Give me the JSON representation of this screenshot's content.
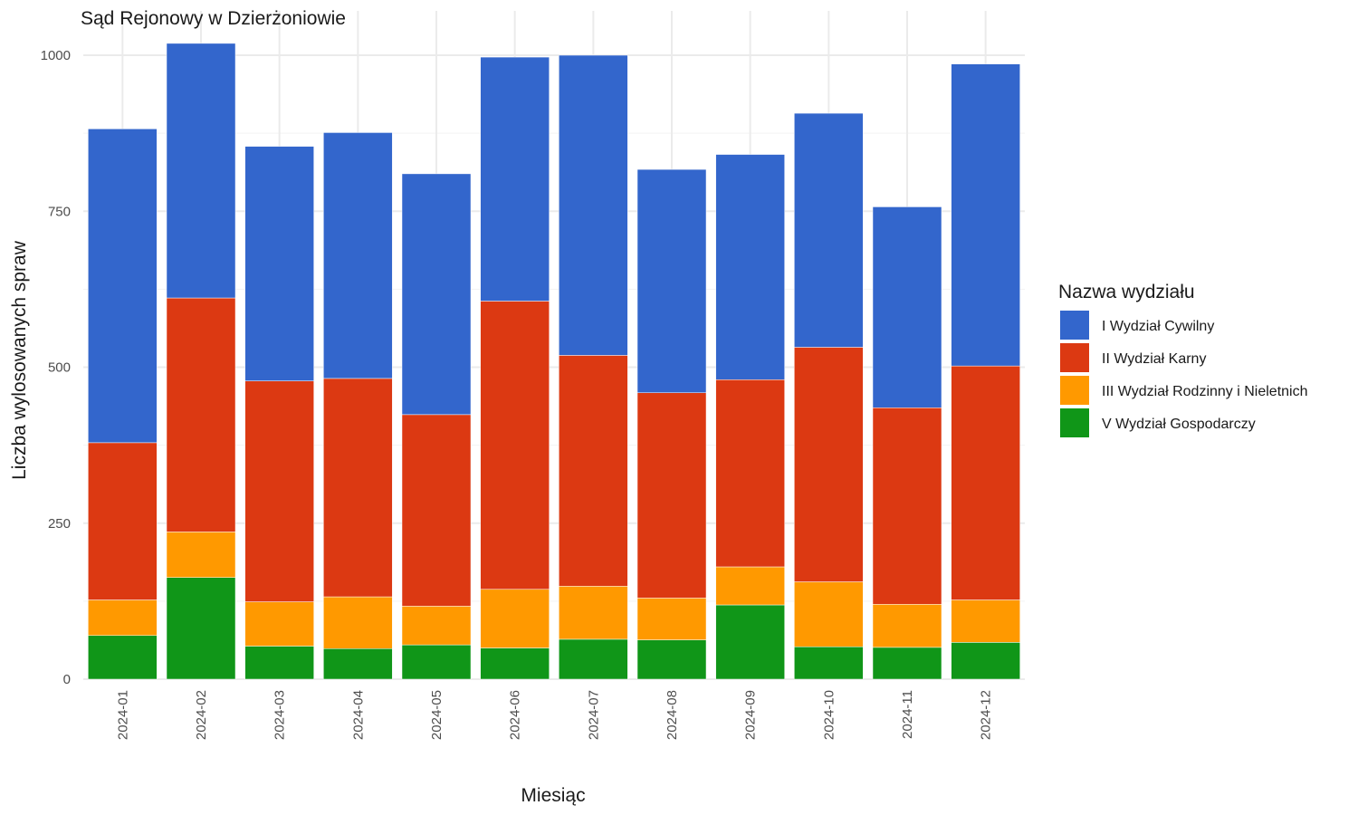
{
  "chart_data": {
    "type": "bar",
    "stacked": true,
    "title": "Sąd Rejonowy w Dzierżoniowie",
    "xlabel": "Miesiąc",
    "ylabel": "Liczba wylosowanych spraw",
    "ylim": [
      0,
      1050
    ],
    "yticks": [
      0,
      250,
      500,
      750,
      1000
    ],
    "grid": true,
    "legend": {
      "title": "Nazwa wydziału",
      "position": "right"
    },
    "categories": [
      "2024-01",
      "2024-02",
      "2024-03",
      "2024-04",
      "2024-05",
      "2024-06",
      "2024-07",
      "2024-08",
      "2024-09",
      "2024-10",
      "2024-11",
      "2024-12"
    ],
    "series": [
      {
        "name": "I Wydział Cywilny",
        "color": "#3366CC",
        "values": [
          503,
          408,
          376,
          394,
          386,
          391,
          481,
          358,
          361,
          375,
          322,
          484
        ]
      },
      {
        "name": "II Wydział Karny",
        "color": "#DC3912",
        "values": [
          252,
          375,
          354,
          350,
          307,
          462,
          370,
          329,
          300,
          376,
          315,
          375
        ]
      },
      {
        "name": "III Wydział Rodzinny i Nieletnich",
        "color": "#FF9900",
        "values": [
          57,
          73,
          71,
          83,
          62,
          94,
          85,
          67,
          61,
          104,
          69,
          68
        ]
      },
      {
        "name": "V Wydział Gospodarczy",
        "color": "#109618",
        "values": [
          70,
          163,
          53,
          49,
          55,
          50,
          64,
          63,
          119,
          52,
          51,
          59
        ]
      }
    ]
  }
}
